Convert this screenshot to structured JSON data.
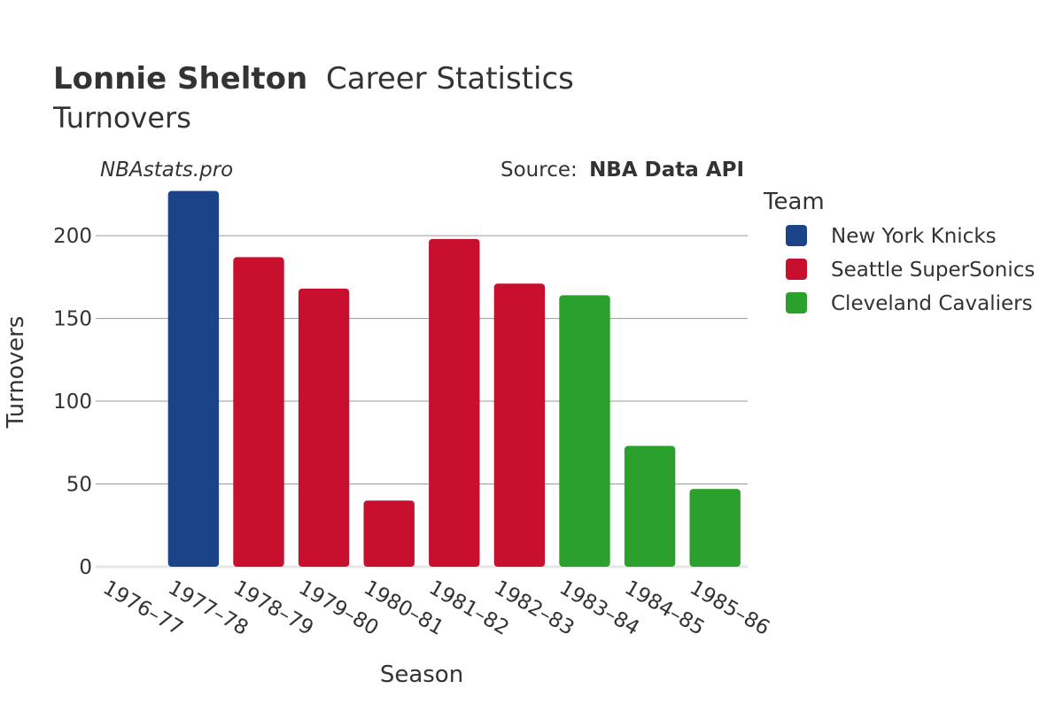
{
  "chart_data": {
    "type": "bar",
    "title_bold": "Lonnie Shelton",
    "title_rest": "Career Statistics",
    "subtitle": "Turnovers",
    "watermark": "NBAstats.pro",
    "source_prefix": "Source:",
    "source_name": "NBA Data API",
    "xlabel": "Season",
    "ylabel": "Turnovers",
    "ylim": [
      0,
      230
    ],
    "yticks": [
      0,
      50,
      100,
      150,
      200
    ],
    "grid": true,
    "legend_title": "Team",
    "legend_position": "right",
    "categories": [
      "1976–77",
      "1977–78",
      "1978–79",
      "1979–80",
      "1980–81",
      "1981–82",
      "1982–83",
      "1983–84",
      "1984–85",
      "1985–86"
    ],
    "series": [
      {
        "name": "New York Knicks",
        "color": "#1b4488",
        "values": [
          null,
          227,
          null,
          null,
          null,
          null,
          null,
          null,
          null,
          null
        ]
      },
      {
        "name": "Seattle SuperSonics",
        "color": "#c8102e",
        "values": [
          null,
          null,
          187,
          168,
          40,
          198,
          171,
          null,
          null,
          null
        ]
      },
      {
        "name": "Cleveland Cavaliers",
        "color": "#2ca02c",
        "values": [
          null,
          null,
          null,
          null,
          null,
          null,
          null,
          164,
          73,
          47
        ]
      }
    ]
  }
}
